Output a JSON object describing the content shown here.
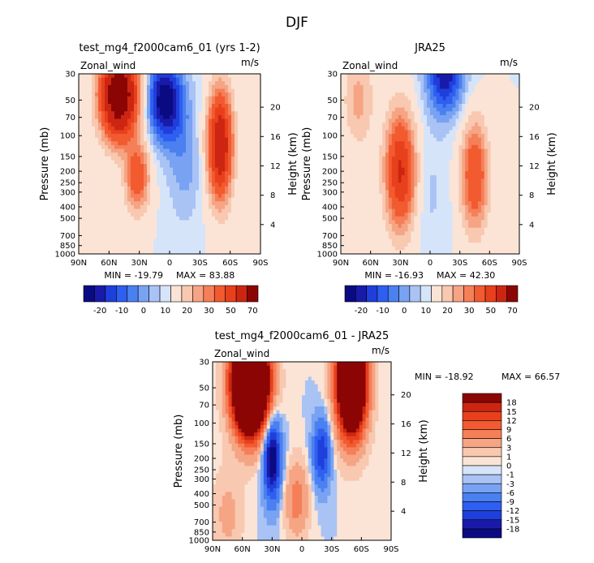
{
  "figure": {
    "title": "DJF"
  },
  "colors": {
    "neg": [
      "#0a0a82",
      "#1a1aaa",
      "#1f3fdc",
      "#2f5ff0",
      "#4a80f0",
      "#79a3f2",
      "#a9c3f5",
      "#d6e4fa"
    ],
    "pos": [
      "#fbe4d5",
      "#f8c8b0",
      "#f5a484",
      "#f57f58",
      "#f25a30",
      "#e8401c",
      "#cc2612",
      "#8c0505"
    ]
  },
  "chart_data": [
    {
      "type": "contour",
      "id": "model",
      "title": "test_mg4_f2000cam6_01 (yrs 1-2)",
      "field_label": "Zonal_wind",
      "units": "m/s",
      "ylabel": "Pressure (mb)",
      "y2label": "Height (km)",
      "x_ticks": [
        "90N",
        "60N",
        "30N",
        "0",
        "30S",
        "60S",
        "90S"
      ],
      "x_values": [
        90,
        60,
        30,
        0,
        -30,
        -60,
        -90
      ],
      "y_ticks": [
        30,
        50,
        70,
        100,
        150,
        200,
        250,
        300,
        400,
        500,
        700,
        850,
        1000
      ],
      "height_ticks": [
        20,
        16,
        12,
        8,
        4
      ],
      "min_label": "MIN = -19.79",
      "max_label": "MAX = 83.88",
      "min": -19.79,
      "max": 83.88,
      "colorbar_labels": [
        "-20",
        "-10",
        "0",
        "10",
        "20",
        "30",
        "50",
        "70"
      ],
      "colorbar_levels": [
        -20,
        -10,
        0,
        10,
        20,
        30,
        50,
        70
      ],
      "blobs": [
        {
          "lat": 50,
          "plev": 45,
          "amp": 85,
          "slat": 12,
          "slog": 0.55
        },
        {
          "lat": 32,
          "plev": 220,
          "amp": 28,
          "slat": 8,
          "slog": 0.45
        },
        {
          "lat": -50,
          "plev": 120,
          "amp": 55,
          "slat": 8,
          "slog": 0.7
        },
        {
          "lat": 5,
          "plev": 50,
          "amp": -20,
          "slat": 14,
          "slog": 0.6
        },
        {
          "lat": -15,
          "plev": 180,
          "amp": -6,
          "slat": 12,
          "slog": 0.8
        }
      ]
    },
    {
      "type": "contour",
      "id": "obs",
      "title": "JRA25",
      "field_label": "Zonal_wind",
      "units": "m/s",
      "ylabel": "Pressure (mb)",
      "y2label": "Height (km)",
      "x_ticks": [
        "90N",
        "60N",
        "30N",
        "0",
        "30S",
        "60S",
        "90S"
      ],
      "x_values": [
        90,
        60,
        30,
        0,
        -30,
        -60,
        -90
      ],
      "y_ticks": [
        30,
        50,
        70,
        100,
        150,
        200,
        250,
        300,
        400,
        500,
        700,
        850,
        1000
      ],
      "height_ticks": [
        20,
        16,
        12,
        8,
        4
      ],
      "min_label": "MIN = -16.93",
      "max_label": "MAX = 42.30",
      "min": -16.93,
      "max": 42.3,
      "colorbar_labels": [
        "-20",
        "-10",
        "0",
        "10",
        "20",
        "30",
        "50",
        "70"
      ],
      "colorbar_levels": [
        -20,
        -10,
        0,
        10,
        20,
        30,
        50,
        70
      ],
      "blobs": [
        {
          "lat": 30,
          "plev": 200,
          "amp": 42,
          "slat": 10,
          "slog": 0.75
        },
        {
          "lat": -45,
          "plev": 220,
          "amp": 30,
          "slat": 9,
          "slog": 0.7
        },
        {
          "lat": 72,
          "plev": 50,
          "amp": 12,
          "slat": 10,
          "slog": 0.6
        },
        {
          "lat": -15,
          "plev": 30,
          "amp": -17,
          "slat": 14,
          "slog": 0.6
        },
        {
          "lat": 0,
          "plev": 300,
          "amp": -3,
          "slat": 12,
          "slog": 0.8
        }
      ]
    },
    {
      "type": "contour",
      "id": "diff",
      "title": "test_mg4_f2000cam6_01 - JRA25",
      "field_label": "Zonal_wind",
      "units": "m/s",
      "ylabel": "Pressure (mb)",
      "y2label": "Height (km)",
      "x_ticks": [
        "90N",
        "60N",
        "30N",
        "0",
        "30S",
        "60S",
        "90S"
      ],
      "x_values": [
        90,
        60,
        30,
        0,
        -30,
        -60,
        -90
      ],
      "y_ticks": [
        30,
        50,
        70,
        100,
        150,
        200,
        250,
        300,
        400,
        500,
        700,
        850,
        1000
      ],
      "height_ticks": [
        20,
        16,
        12,
        8,
        4
      ],
      "min_label": "MIN = -18.92",
      "max_label": "MAX = 66.57",
      "min": -18.92,
      "max": 66.57,
      "colorbar_labels": [
        "18",
        "15",
        "12",
        "9",
        "6",
        "3",
        "1",
        "0",
        "-1",
        "-3",
        "-6",
        "-9",
        "-12",
        "-15",
        "-18"
      ],
      "colorbar_levels": [
        18,
        15,
        12,
        9,
        6,
        3,
        1,
        0,
        -1,
        -3,
        -6,
        -9,
        -12,
        -15,
        -18
      ],
      "blobs": [
        {
          "lat": 52,
          "plev": 45,
          "amp": 66,
          "slat": 12,
          "slog": 0.65
        },
        {
          "lat": -50,
          "plev": 45,
          "amp": 50,
          "slat": 10,
          "slog": 0.7
        },
        {
          "lat": 30,
          "plev": 200,
          "amp": -19,
          "slat": 6,
          "slog": 0.55
        },
        {
          "lat": -20,
          "plev": 180,
          "amp": -12,
          "slat": 6,
          "slog": 0.45
        },
        {
          "lat": 5,
          "plev": 450,
          "amp": 8,
          "slat": 8,
          "slog": 0.5
        },
        {
          "lat": 75,
          "plev": 600,
          "amp": 4,
          "slat": 10,
          "slog": 0.6
        }
      ]
    }
  ]
}
